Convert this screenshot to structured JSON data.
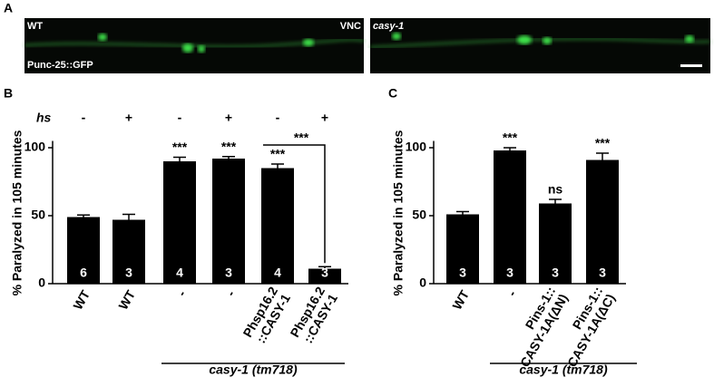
{
  "panel_a": {
    "label": "A",
    "left_labels": [
      "WT",
      "VNC",
      "Punc-25::GFP"
    ],
    "right_label": "casy-1"
  },
  "chart_data": [
    {
      "type": "bar",
      "panel": "B",
      "ylabel": "% Paralyzed in 105 minutes",
      "hs_label": "hs",
      "hs": [
        "-",
        "+",
        "-",
        "+",
        "-",
        "+"
      ],
      "categories": [
        [
          "WT"
        ],
        [
          "WT"
        ],
        [
          "-"
        ],
        [
          "-"
        ],
        [
          "Phsp16.2",
          "::CASY-1"
        ],
        [
          "Phsp16.2",
          "::CASY-1"
        ]
      ],
      "values": [
        49,
        47,
        90,
        92,
        85,
        11
      ],
      "errors": [
        1.5,
        4,
        3,
        1.5,
        3,
        1.5
      ],
      "n": [
        6,
        3,
        4,
        3,
        4,
        3
      ],
      "significance": [
        null,
        null,
        "***",
        "***",
        "***",
        null
      ],
      "bracket_label": "***",
      "group_label": "casy-1 (tm718)",
      "color": "#000000",
      "ylim": [
        0,
        105
      ],
      "yticks": [
        0,
        50,
        100
      ]
    },
    {
      "type": "bar",
      "panel": "C",
      "ylabel": "% Paralyzed in 105 minutes",
      "categories": [
        [
          "WT"
        ],
        [
          "-"
        ],
        [
          "Pins-1::",
          "CASY-1A(ΔN)"
        ],
        [
          "Pins-1::",
          "CASY-1A(ΔC)"
        ]
      ],
      "values": [
        51,
        98,
        59,
        91
      ],
      "errors": [
        2,
        2,
        3,
        5
      ],
      "n": [
        3,
        3,
        3,
        3
      ],
      "significance": [
        null,
        "***",
        "ns",
        "***"
      ],
      "group_label": "casy-1 (tm718)",
      "color": "#000000",
      "ylim": [
        0,
        105
      ],
      "yticks": [
        0,
        50,
        100
      ]
    }
  ]
}
